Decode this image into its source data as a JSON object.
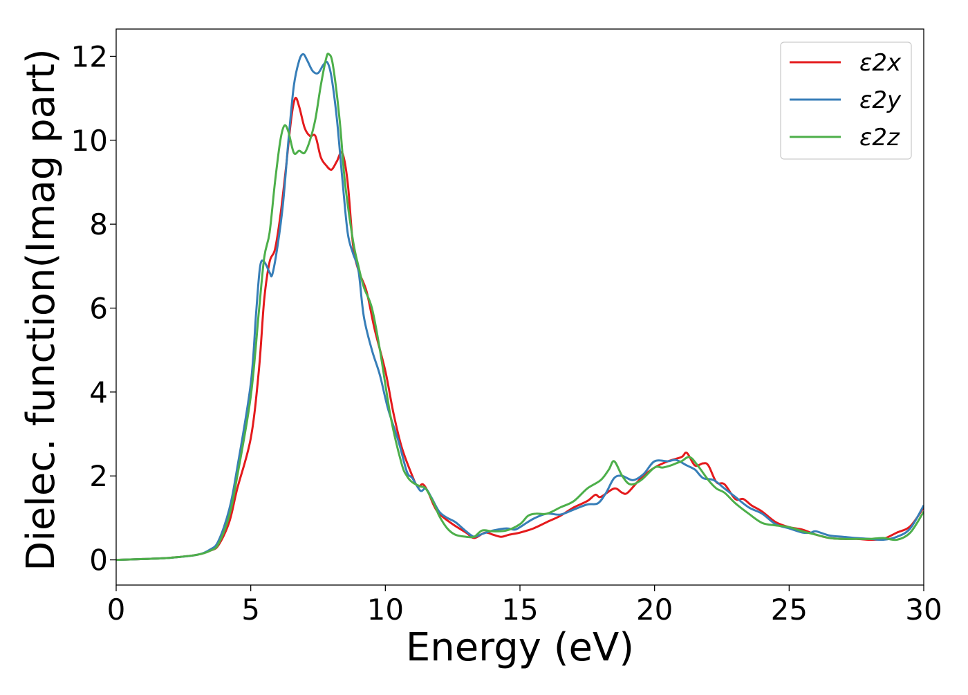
{
  "chart_data": {
    "type": "line",
    "title": "",
    "xlabel": "Energy (eV)",
    "ylabel": "Dielec. function(Imag part)",
    "xlim": [
      0,
      30
    ],
    "ylim": [
      -0.6,
      12.65
    ],
    "xticks": [
      0,
      5,
      10,
      15,
      20,
      25,
      30
    ],
    "yticks": [
      0,
      2,
      4,
      6,
      8,
      10,
      12
    ],
    "grid": false,
    "legend_position": "top-right",
    "series": [
      {
        "name": "ε2x",
        "color": "#e41a1c",
        "points": [
          [
            0,
            0
          ],
          [
            1,
            0.02
          ],
          [
            2,
            0.05
          ],
          [
            3,
            0.12
          ],
          [
            3.5,
            0.22
          ],
          [
            3.8,
            0.35
          ],
          [
            4.2,
            0.9
          ],
          [
            4.5,
            1.7
          ],
          [
            5,
            2.9
          ],
          [
            5.3,
            4.5
          ],
          [
            5.5,
            6.2
          ],
          [
            5.7,
            7.1
          ],
          [
            5.9,
            7.4
          ],
          [
            6.1,
            8.2
          ],
          [
            6.3,
            9.3
          ],
          [
            6.5,
            10.5
          ],
          [
            6.65,
            11.0
          ],
          [
            6.8,
            10.8
          ],
          [
            7.0,
            10.3
          ],
          [
            7.2,
            10.1
          ],
          [
            7.4,
            10.1
          ],
          [
            7.6,
            9.6
          ],
          [
            7.8,
            9.4
          ],
          [
            8.0,
            9.3
          ],
          [
            8.2,
            9.5
          ],
          [
            8.4,
            9.7
          ],
          [
            8.6,
            9.0
          ],
          [
            8.8,
            7.5
          ],
          [
            9.0,
            6.9
          ],
          [
            9.3,
            6.4
          ],
          [
            9.6,
            5.5
          ],
          [
            10.0,
            4.5
          ],
          [
            10.3,
            3.5
          ],
          [
            10.6,
            2.7
          ],
          [
            11.0,
            2.0
          ],
          [
            11.2,
            1.75
          ],
          [
            11.4,
            1.8
          ],
          [
            11.6,
            1.6
          ],
          [
            11.8,
            1.3
          ],
          [
            12.0,
            1.1
          ],
          [
            12.5,
            0.85
          ],
          [
            13.0,
            0.65
          ],
          [
            13.3,
            0.52
          ],
          [
            13.7,
            0.65
          ],
          [
            14.0,
            0.6
          ],
          [
            14.3,
            0.55
          ],
          [
            14.6,
            0.6
          ],
          [
            15.0,
            0.65
          ],
          [
            15.5,
            0.75
          ],
          [
            16.0,
            0.9
          ],
          [
            16.5,
            1.05
          ],
          [
            17.0,
            1.25
          ],
          [
            17.5,
            1.4
          ],
          [
            17.8,
            1.55
          ],
          [
            18.0,
            1.5
          ],
          [
            18.5,
            1.7
          ],
          [
            18.8,
            1.6
          ],
          [
            19.0,
            1.6
          ],
          [
            19.5,
            1.95
          ],
          [
            20.0,
            2.2
          ],
          [
            20.5,
            2.35
          ],
          [
            21.0,
            2.45
          ],
          [
            21.2,
            2.55
          ],
          [
            21.5,
            2.25
          ],
          [
            21.8,
            2.3
          ],
          [
            22.0,
            2.25
          ],
          [
            22.3,
            1.85
          ],
          [
            22.6,
            1.8
          ],
          [
            23.0,
            1.45
          ],
          [
            23.3,
            1.45
          ],
          [
            23.6,
            1.3
          ],
          [
            24.0,
            1.15
          ],
          [
            24.5,
            0.9
          ],
          [
            25.0,
            0.78
          ],
          [
            25.5,
            0.72
          ],
          [
            26.0,
            0.6
          ],
          [
            26.5,
            0.52
          ],
          [
            27.0,
            0.5
          ],
          [
            27.5,
            0.5
          ],
          [
            28.0,
            0.48
          ],
          [
            28.5,
            0.5
          ],
          [
            29.0,
            0.65
          ],
          [
            29.5,
            0.8
          ],
          [
            30.0,
            1.25
          ]
        ]
      },
      {
        "name": "ε2y",
        "color": "#377eb8",
        "points": [
          [
            0,
            0
          ],
          [
            1,
            0.02
          ],
          [
            2,
            0.05
          ],
          [
            3,
            0.12
          ],
          [
            3.5,
            0.25
          ],
          [
            3.8,
            0.45
          ],
          [
            4.2,
            1.2
          ],
          [
            4.5,
            2.2
          ],
          [
            5,
            4.2
          ],
          [
            5.2,
            5.9
          ],
          [
            5.35,
            7.0
          ],
          [
            5.5,
            7.1
          ],
          [
            5.7,
            6.85
          ],
          [
            5.8,
            6.8
          ],
          [
            6.0,
            7.5
          ],
          [
            6.2,
            8.5
          ],
          [
            6.4,
            10.0
          ],
          [
            6.6,
            11.3
          ],
          [
            6.8,
            11.9
          ],
          [
            6.95,
            12.05
          ],
          [
            7.1,
            11.9
          ],
          [
            7.3,
            11.65
          ],
          [
            7.5,
            11.6
          ],
          [
            7.7,
            11.8
          ],
          [
            7.85,
            11.85
          ],
          [
            8.0,
            11.5
          ],
          [
            8.2,
            10.5
          ],
          [
            8.4,
            9.1
          ],
          [
            8.6,
            7.8
          ],
          [
            8.8,
            7.3
          ],
          [
            9.0,
            6.9
          ],
          [
            9.2,
            5.8
          ],
          [
            9.5,
            5.0
          ],
          [
            9.8,
            4.4
          ],
          [
            10.1,
            3.6
          ],
          [
            10.5,
            2.8
          ],
          [
            10.8,
            2.1
          ],
          [
            11.0,
            1.95
          ],
          [
            11.3,
            1.65
          ],
          [
            11.5,
            1.7
          ],
          [
            11.7,
            1.5
          ],
          [
            12.0,
            1.15
          ],
          [
            12.3,
            1.0
          ],
          [
            12.6,
            0.9
          ],
          [
            13.0,
            0.68
          ],
          [
            13.3,
            0.55
          ],
          [
            13.6,
            0.62
          ],
          [
            14.0,
            0.7
          ],
          [
            14.5,
            0.75
          ],
          [
            14.8,
            0.72
          ],
          [
            15.0,
            0.78
          ],
          [
            15.5,
            0.98
          ],
          [
            16.0,
            1.1
          ],
          [
            16.5,
            1.08
          ],
          [
            17.0,
            1.2
          ],
          [
            17.5,
            1.32
          ],
          [
            17.9,
            1.35
          ],
          [
            18.2,
            1.6
          ],
          [
            18.5,
            1.95
          ],
          [
            18.8,
            2.0
          ],
          [
            19.2,
            1.9
          ],
          [
            19.6,
            2.05
          ],
          [
            20.0,
            2.35
          ],
          [
            20.5,
            2.35
          ],
          [
            20.8,
            2.38
          ],
          [
            21.2,
            2.25
          ],
          [
            21.5,
            2.15
          ],
          [
            21.8,
            1.95
          ],
          [
            22.2,
            1.9
          ],
          [
            22.6,
            1.7
          ],
          [
            23.0,
            1.5
          ],
          [
            23.5,
            1.25
          ],
          [
            24.0,
            1.1
          ],
          [
            24.5,
            0.85
          ],
          [
            25.0,
            0.75
          ],
          [
            25.5,
            0.65
          ],
          [
            25.8,
            0.65
          ],
          [
            26.0,
            0.68
          ],
          [
            26.5,
            0.58
          ],
          [
            27.0,
            0.55
          ],
          [
            27.5,
            0.52
          ],
          [
            28.0,
            0.5
          ],
          [
            28.5,
            0.48
          ],
          [
            29.0,
            0.55
          ],
          [
            29.5,
            0.75
          ],
          [
            30.0,
            1.3
          ]
        ]
      },
      {
        "name": "ε2z",
        "color": "#4daf4a",
        "points": [
          [
            0,
            0
          ],
          [
            1,
            0.02
          ],
          [
            2,
            0.05
          ],
          [
            3,
            0.12
          ],
          [
            3.5,
            0.22
          ],
          [
            3.8,
            0.38
          ],
          [
            4.2,
            1.05
          ],
          [
            4.5,
            2.0
          ],
          [
            5,
            3.9
          ],
          [
            5.3,
            5.9
          ],
          [
            5.5,
            7.2
          ],
          [
            5.7,
            7.8
          ],
          [
            5.9,
            9.0
          ],
          [
            6.1,
            10.0
          ],
          [
            6.25,
            10.35
          ],
          [
            6.4,
            10.2
          ],
          [
            6.6,
            9.7
          ],
          [
            6.8,
            9.75
          ],
          [
            7.0,
            9.7
          ],
          [
            7.2,
            10.0
          ],
          [
            7.4,
            10.5
          ],
          [
            7.6,
            11.3
          ],
          [
            7.8,
            11.95
          ],
          [
            7.9,
            12.05
          ],
          [
            8.05,
            11.8
          ],
          [
            8.3,
            10.5
          ],
          [
            8.5,
            9.0
          ],
          [
            8.8,
            7.6
          ],
          [
            9.0,
            7.0
          ],
          [
            9.2,
            6.5
          ],
          [
            9.5,
            6.0
          ],
          [
            9.8,
            5.0
          ],
          [
            10.2,
            3.4
          ],
          [
            10.6,
            2.3
          ],
          [
            10.8,
            2.0
          ],
          [
            11.0,
            1.85
          ],
          [
            11.3,
            1.75
          ],
          [
            11.5,
            1.7
          ],
          [
            11.8,
            1.35
          ],
          [
            12.0,
            1.05
          ],
          [
            12.3,
            0.75
          ],
          [
            12.6,
            0.6
          ],
          [
            13.0,
            0.55
          ],
          [
            13.3,
            0.55
          ],
          [
            13.6,
            0.7
          ],
          [
            14.0,
            0.68
          ],
          [
            14.5,
            0.7
          ],
          [
            15.0,
            0.85
          ],
          [
            15.3,
            1.05
          ],
          [
            15.6,
            1.1
          ],
          [
            16.0,
            1.1
          ],
          [
            16.5,
            1.25
          ],
          [
            17.0,
            1.4
          ],
          [
            17.5,
            1.7
          ],
          [
            18.0,
            1.9
          ],
          [
            18.3,
            2.15
          ],
          [
            18.5,
            2.35
          ],
          [
            18.8,
            2.0
          ],
          [
            19.1,
            1.8
          ],
          [
            19.5,
            1.9
          ],
          [
            20.0,
            2.2
          ],
          [
            20.3,
            2.2
          ],
          [
            20.6,
            2.25
          ],
          [
            20.8,
            2.3
          ],
          [
            21.0,
            2.35
          ],
          [
            21.3,
            2.45
          ],
          [
            21.6,
            2.25
          ],
          [
            22.0,
            1.9
          ],
          [
            22.3,
            1.7
          ],
          [
            22.6,
            1.6
          ],
          [
            23.0,
            1.35
          ],
          [
            23.5,
            1.1
          ],
          [
            24.0,
            0.88
          ],
          [
            24.5,
            0.82
          ],
          [
            25.0,
            0.78
          ],
          [
            25.5,
            0.68
          ],
          [
            26.0,
            0.6
          ],
          [
            26.5,
            0.52
          ],
          [
            27.0,
            0.5
          ],
          [
            27.5,
            0.5
          ],
          [
            28.0,
            0.5
          ],
          [
            28.5,
            0.52
          ],
          [
            29.0,
            0.48
          ],
          [
            29.5,
            0.65
          ],
          [
            30.0,
            1.15
          ]
        ]
      }
    ]
  }
}
